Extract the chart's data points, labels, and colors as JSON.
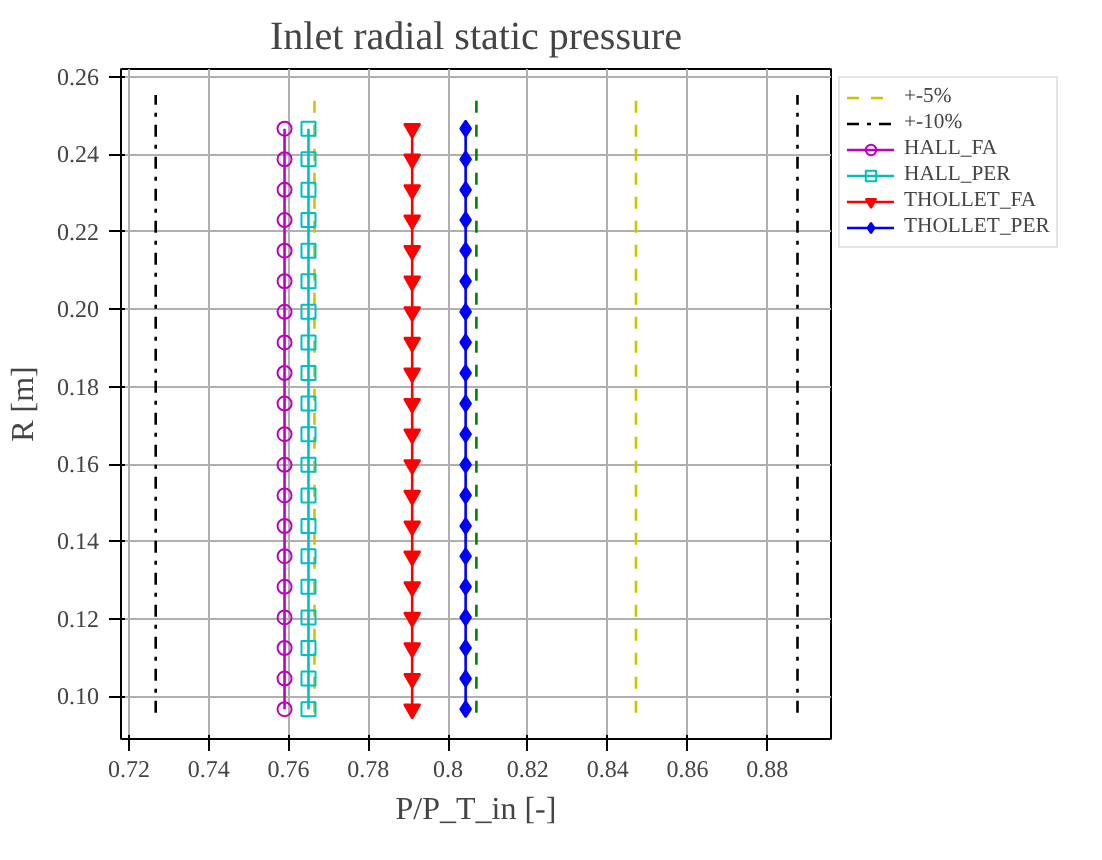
{
  "chart_data": {
    "type": "line",
    "title": "Inlet radial static pressure",
    "xlabel": "P/P_T_in [-]",
    "ylabel": "R [m]",
    "xlim": [
      0.718,
      0.896
    ],
    "xticks": [
      0.72,
      0.74,
      0.76,
      0.78,
      0.8,
      {
        "value": 0.82,
        "label": "0.82"
      },
      0.84,
      0.86,
      0.88
    ],
    "ylim": [
      0.089,
      0.262
    ],
    "yticks": [
      {
        "value": 0.1,
        "label": "0.10"
      },
      0.12,
      0.14,
      0.16,
      0.18,
      {
        "value": 0.2,
        "label": "0.20"
      },
      0.22,
      0.24,
      0.26
    ],
    "grid": true,
    "legend": "right",
    "series": [
      {
        "color": "#008000",
        "line_style": "dashed",
        "marker": "none",
        "x": [
          0.8071,
          0.8071
        ],
        "values": [
          0.0958,
          0.2553
        ]
      },
      {
        "name": "+-5%",
        "color": "#c8c800",
        "line_style": "dashed",
        "marker": "none",
        "x": [
          0.7665,
          0.7665,
          null,
          0.8471,
          0.8471
        ],
        "values": [
          0.0958,
          0.2553,
          null,
          0.0958,
          0.2553
        ]
      },
      {
        "name": "+-10%",
        "color": "#000000",
        "line_style": "dashdot",
        "marker": "none",
        "x": [
          0.7267,
          0.7267,
          null,
          0.8876,
          0.8876
        ],
        "values": [
          0.0958,
          0.2553,
          null,
          0.0958,
          0.2553
        ]
      },
      {
        "name": "HALL_FA",
        "color": "#bf00bf",
        "line_style": "solid",
        "marker": "circle",
        "x": [
          0.759,
          0.759,
          0.759,
          0.759,
          0.759,
          0.759,
          0.759,
          0.759,
          0.759,
          0.759,
          0.759,
          0.759,
          0.759,
          0.759,
          0.759,
          0.759,
          0.759,
          0.759,
          0.759,
          0.759
        ],
        "values": [
          0.0967,
          0.1046,
          0.1125,
          0.1204,
          0.1283,
          0.1362,
          0.144,
          0.1519,
          0.1598,
          0.1677,
          0.1756,
          0.1835,
          0.1914,
          0.1993,
          0.2072,
          0.2151,
          0.223,
          0.2308,
          0.2387,
          0.2466
        ]
      },
      {
        "name": "HALL_PER",
        "color": "#00bfbf",
        "line_style": "solid",
        "marker": "square",
        "x": [
          0.765,
          0.765,
          0.765,
          0.765,
          0.765,
          0.765,
          0.765,
          0.765,
          0.765,
          0.765,
          0.765,
          0.765,
          0.765,
          0.765,
          0.765,
          0.765,
          0.765,
          0.765,
          0.765,
          0.765
        ],
        "values": [
          0.0967,
          0.1046,
          0.1125,
          0.1204,
          0.1283,
          0.1362,
          0.144,
          0.1519,
          0.1598,
          0.1677,
          0.1756,
          0.1835,
          0.1914,
          0.1993,
          0.2072,
          0.2151,
          0.223,
          0.2308,
          0.2387,
          0.2466
        ]
      },
      {
        "name": "THOLLET_FA",
        "color": "#ff0000",
        "line_style": "solid",
        "marker": "triangle",
        "x": [
          0.791,
          0.791,
          0.791,
          0.791,
          0.791,
          0.791,
          0.791,
          0.791,
          0.791,
          0.791,
          0.791,
          0.791,
          0.791,
          0.791,
          0.791,
          0.791,
          0.791,
          0.791,
          0.791,
          0.791
        ],
        "values": [
          0.0967,
          0.1046,
          0.1125,
          0.1204,
          0.1283,
          0.1362,
          0.144,
          0.1519,
          0.1598,
          0.1677,
          0.1756,
          0.1835,
          0.1914,
          0.1993,
          0.2072,
          0.2151,
          0.223,
          0.2308,
          0.2387,
          0.2466
        ]
      },
      {
        "name": "THOLLET_PER",
        "color": "#0000ff",
        "line_style": "solid",
        "marker": "diamond",
        "x": [
          0.8044,
          0.8044,
          0.8044,
          0.8044,
          0.8044,
          0.8044,
          0.8044,
          0.8044,
          0.8044,
          0.8044,
          0.8044,
          0.8044,
          0.8044,
          0.8044,
          0.8044,
          0.8044,
          0.8044,
          0.8044,
          0.8044,
          0.8044
        ],
        "values": [
          0.0967,
          0.1046,
          0.1125,
          0.1204,
          0.1283,
          0.1362,
          0.144,
          0.1519,
          0.1598,
          0.1677,
          0.1756,
          0.1835,
          0.1914,
          0.1993,
          0.2072,
          0.2151,
          0.223,
          0.2308,
          0.2387,
          0.2466
        ]
      }
    ]
  }
}
